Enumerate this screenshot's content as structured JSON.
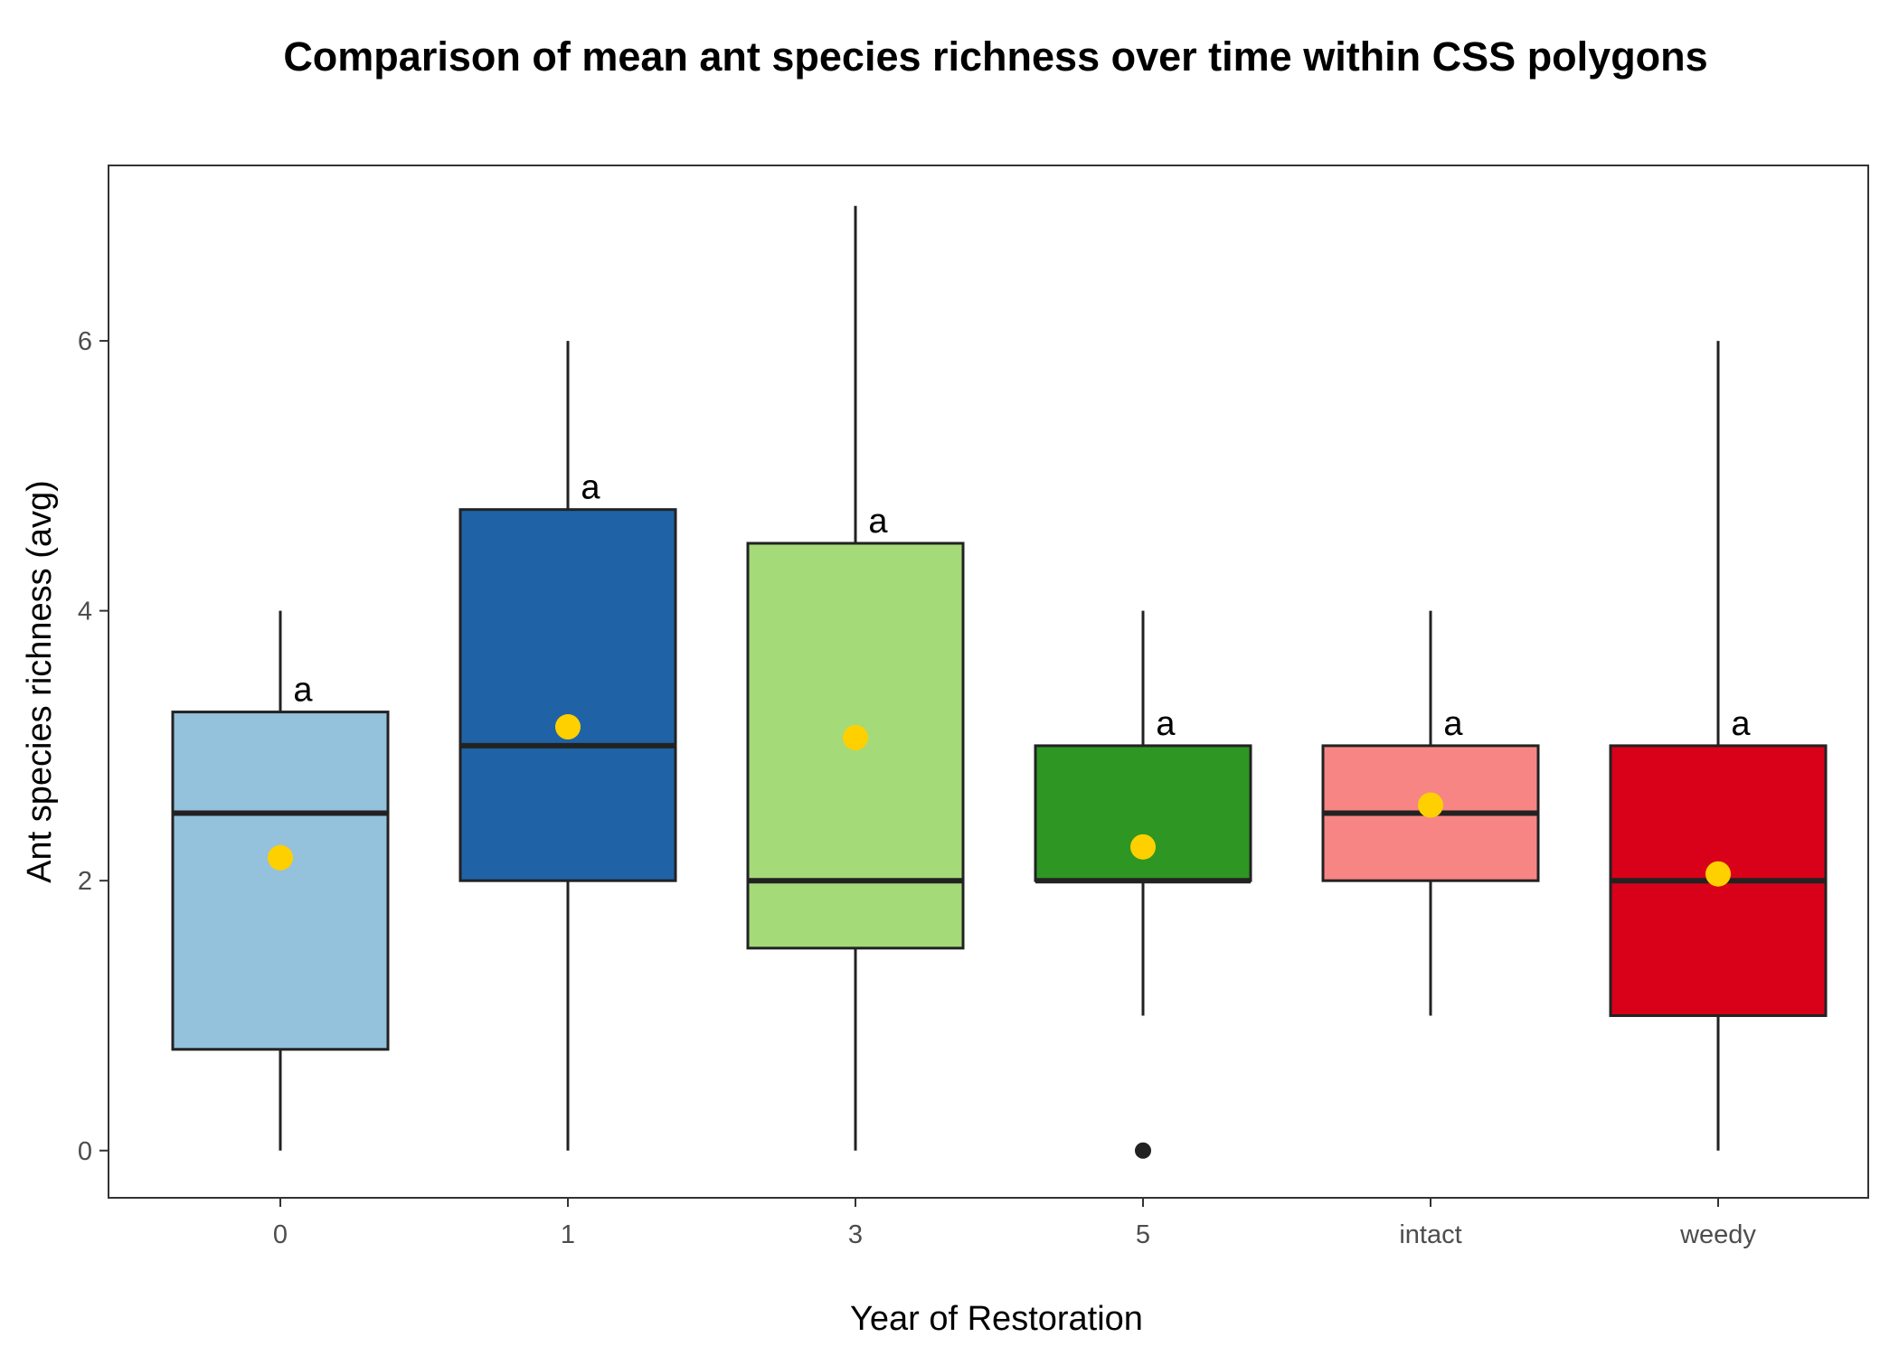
{
  "chart_data": {
    "type": "boxplot",
    "title": "Comparison of mean ant species richness over time within CSS polygons",
    "xlabel": "Year of Restoration",
    "ylabel": "Ant species richness (avg)",
    "ylim": [
      -0.35,
      7.3
    ],
    "yticks": [
      0,
      2,
      4,
      6
    ],
    "categories": [
      "0",
      "1",
      "3",
      "5",
      "intact",
      "weedy"
    ],
    "boxes": [
      {
        "category": "0",
        "min": 0,
        "q1": 0.75,
        "median": 2.5,
        "q3": 3.25,
        "max": 4,
        "mean": 2.17,
        "outliers": [],
        "fill": "#94c1dc",
        "label": "a"
      },
      {
        "category": "1",
        "min": 0,
        "q1": 2,
        "median": 3,
        "q3": 4.75,
        "max": 6,
        "mean": 3.14,
        "outliers": [],
        "fill": "#1f63a6",
        "label": "a"
      },
      {
        "category": "3",
        "min": 0,
        "q1": 1.5,
        "median": 2,
        "q3": 4.5,
        "max": 7,
        "mean": 3.06,
        "outliers": [],
        "fill": "#a5da78",
        "label": "a"
      },
      {
        "category": "5",
        "min": 1,
        "q1": 2,
        "median": 2,
        "q3": 3,
        "max": 4,
        "mean": 2.25,
        "outliers": [
          0
        ],
        "fill": "#2e9623",
        "label": "a"
      },
      {
        "category": "intact",
        "min": 1,
        "q1": 2,
        "median": 2.5,
        "q3": 3,
        "max": 4,
        "mean": 2.56,
        "outliers": [],
        "fill": "#f78584",
        "label": "a"
      },
      {
        "category": "weedy",
        "min": 0,
        "q1": 1,
        "median": 2,
        "q3": 3,
        "max": 6,
        "mean": 2.05,
        "outliers": [],
        "fill": "#d9001a",
        "label": "a"
      }
    ],
    "mean_point_color": "#ffd000",
    "grid": false,
    "legend": "none"
  }
}
